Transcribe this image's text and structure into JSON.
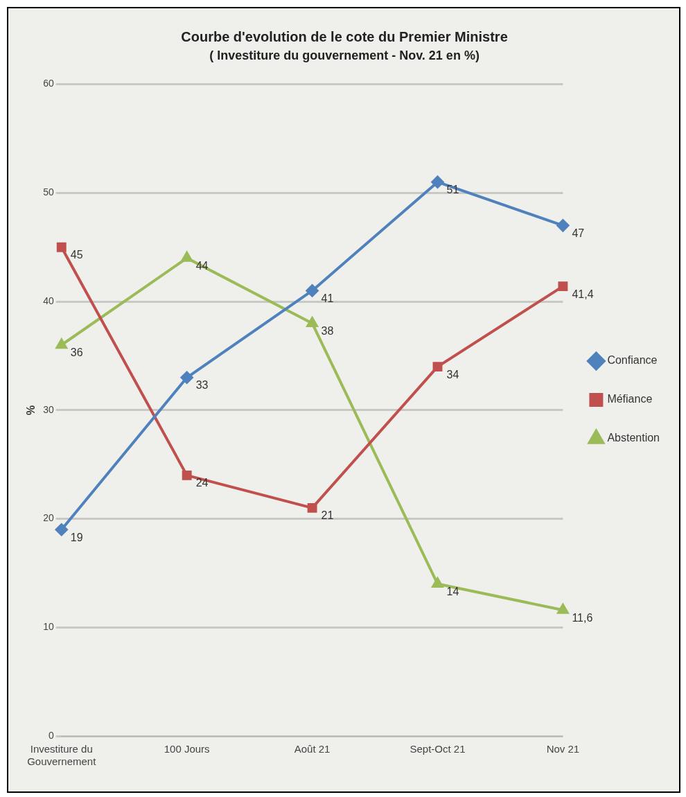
{
  "chart_data": {
    "type": "line",
    "title": "Courbe d'evolution de le cote du Premier Ministre",
    "subtitle": "( Investiture du gouvernement - Nov. 21 en %)",
    "ylabel": "%",
    "categories": [
      "Investiture du Gouvernement",
      "100 Jours",
      "Août 21",
      "Sept-Oct 21",
      "Nov 21"
    ],
    "series": [
      {
        "name": "Confiance",
        "color": "#4f81bd",
        "marker": "diamond",
        "values": [
          19,
          33,
          41,
          51,
          47
        ],
        "value_labels": [
          "19",
          "33",
          "41",
          "51",
          "47"
        ]
      },
      {
        "name": "Méfiance",
        "color": "#c0504d",
        "marker": "square",
        "values": [
          45,
          24,
          21,
          34,
          41.4
        ],
        "value_labels": [
          "45",
          "24",
          "21",
          "34",
          "41,4"
        ]
      },
      {
        "name": "Abstention",
        "color": "#9bbb59",
        "marker": "triangle",
        "values": [
          36,
          44,
          38,
          14,
          11.6
        ],
        "value_labels": [
          "36",
          "44",
          "38",
          "14",
          "11,6"
        ]
      }
    ],
    "ylim": [
      0,
      60
    ],
    "yticks": [
      0,
      10,
      20,
      30,
      40,
      50,
      60
    ],
    "grid": "y",
    "legend": "right"
  }
}
